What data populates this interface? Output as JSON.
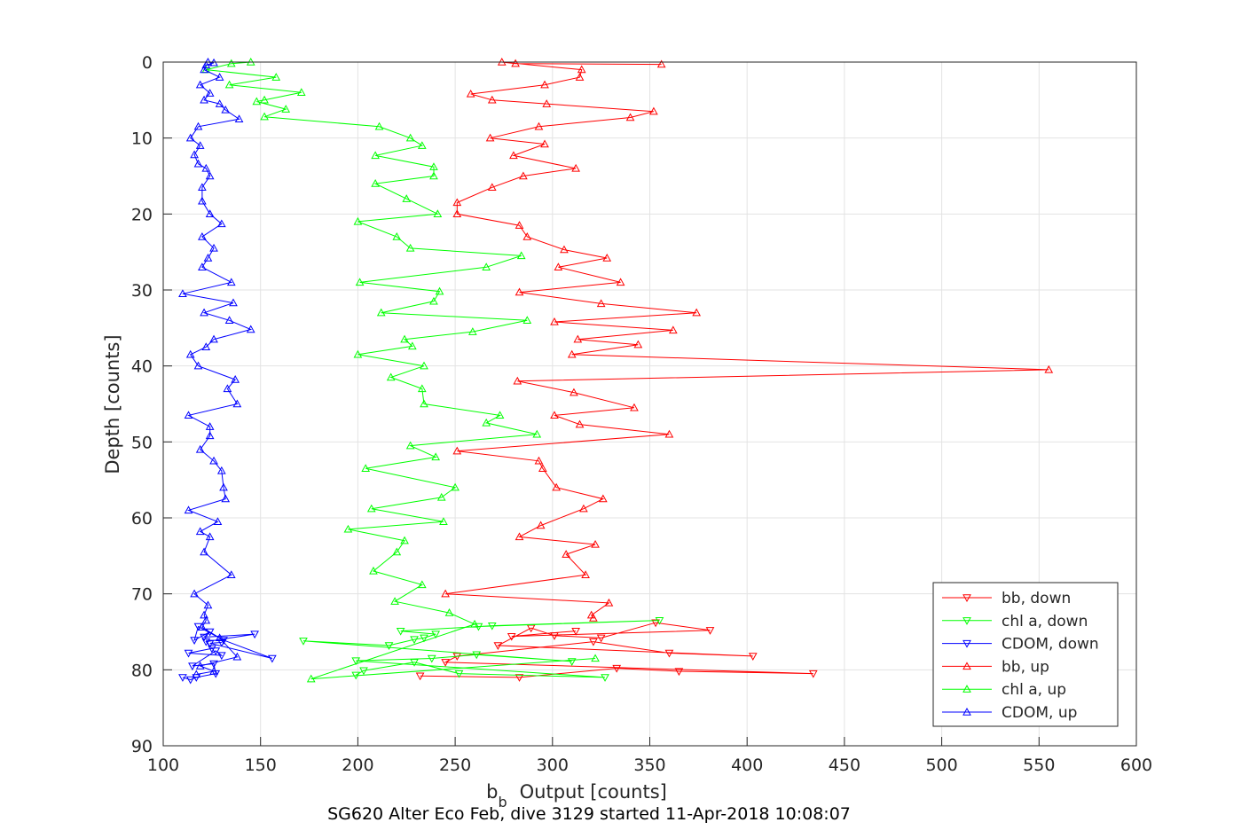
{
  "chart_data": {
    "type": "line",
    "title": "",
    "xlabel_main": "b",
    "xlabel_sub": "b",
    "xlabel_rest": "Output [counts]",
    "ylabel": "Depth [counts]",
    "caption": "SG620 Alter Eco Feb, dive 3129 started 11-Apr-2018 10:08:07",
    "xlim": [
      100,
      600
    ],
    "ylim": [
      0,
      90
    ],
    "y_reversed": true,
    "grid": true,
    "legend_position": "bottom-right",
    "x_ticks": [
      100,
      150,
      200,
      250,
      300,
      350,
      400,
      450,
      500,
      550,
      600
    ],
    "y_ticks": [
      0,
      10,
      20,
      30,
      40,
      50,
      60,
      70,
      80,
      90
    ],
    "series": [
      {
        "name": "bb, down",
        "color": "#ff0000",
        "marker": "triangle-down",
        "x": [
          232,
          283,
          333,
          365,
          434,
          245,
          251,
          321,
          360,
          403,
          272,
          289,
          301,
          325,
          353,
          381,
          279,
          312
        ],
        "y": [
          80.8,
          81,
          79.8,
          80.2,
          80.5,
          79,
          78.2,
          76.3,
          77.8,
          78.2,
          76.8,
          74.5,
          75.5,
          75.8,
          73.8,
          74.8,
          75.6,
          74.9
        ]
      },
      {
        "name": "chl a, down",
        "color": "#00ff00",
        "marker": "triangle-down",
        "x": [
          199,
          203,
          229,
          252,
          327,
          199,
          238,
          261,
          310,
          172,
          216,
          229,
          234,
          240,
          222,
          269,
          355,
          262
        ],
        "y": [
          80.7,
          80.1,
          79,
          80.5,
          81,
          78.8,
          78.5,
          78,
          78.9,
          76.2,
          76.8,
          76,
          75.8,
          75.3,
          74.9,
          74.2,
          73.5,
          74.3
        ]
      },
      {
        "name": "CDOM, down",
        "color": "#0000ff",
        "marker": "triangle-down",
        "x": [
          110,
          114,
          117,
          127,
          126,
          115,
          127,
          130,
          113,
          125,
          122,
          147,
          121,
          124,
          116,
          118,
          131,
          156,
          124,
          130
        ],
        "y": [
          81,
          81.3,
          81,
          80.5,
          79.2,
          79.5,
          77.5,
          78.1,
          77.8,
          77.2,
          76.3,
          75.3,
          75.7,
          75,
          76.1,
          74.3,
          76.1,
          78.5,
          76.5,
          76.4
        ]
      },
      {
        "name": "bb, up",
        "color": "#ff0000",
        "marker": "triangle-up",
        "x": [
          356,
          281,
          274,
          315,
          314,
          296,
          258,
          269,
          297,
          352,
          340,
          293,
          268,
          296,
          280,
          312,
          285,
          269,
          251,
          251,
          283,
          287,
          306,
          328,
          303,
          335,
          283,
          325,
          374,
          301,
          362,
          313,
          344,
          310,
          555,
          282,
          311,
          342,
          301,
          314,
          360,
          251,
          293,
          295,
          302,
          326,
          316,
          294,
          283,
          322,
          307,
          317,
          245,
          329,
          320,
          321
        ],
        "y": [
          0.3,
          0.2,
          0,
          1,
          2,
          3,
          4.2,
          5,
          5.5,
          6.5,
          7.3,
          8.5,
          10,
          10.8,
          12.3,
          14,
          15,
          16.5,
          18.5,
          20,
          21.5,
          23,
          24.7,
          25.8,
          27,
          29,
          30.3,
          31.8,
          33,
          34.2,
          35.3,
          36.5,
          37.2,
          38.5,
          40.5,
          42,
          43.5,
          45.5,
          46.5,
          47.7,
          49,
          51.2,
          52.5,
          53.5,
          56,
          57.5,
          58.8,
          61,
          62.5,
          63.5,
          64.8,
          67.5,
          70,
          71.2,
          72.8,
          73.2
        ]
      },
      {
        "name": "chl a, up",
        "color": "#00ff00",
        "marker": "triangle-up",
        "x": [
          145,
          135,
          122,
          158,
          134,
          171,
          152,
          148,
          163,
          152,
          211,
          227,
          233,
          209,
          239,
          239,
          209,
          225,
          241,
          200,
          220,
          227,
          284,
          266,
          201,
          242,
          239,
          212,
          287,
          259,
          224,
          228,
          200,
          234,
          217,
          233,
          234,
          273,
          266,
          292,
          227,
          240,
          204,
          250,
          243,
          207,
          244,
          195,
          224,
          220,
          208,
          233,
          219,
          247,
          260,
          176,
          322
        ],
        "y": [
          0,
          0.2,
          1,
          2,
          3,
          4,
          5,
          5.2,
          6.2,
          7.2,
          8.5,
          10,
          11,
          12.3,
          13.8,
          15,
          16,
          18,
          20,
          21,
          23,
          24.5,
          25.5,
          27,
          29,
          30.2,
          31.5,
          33,
          34,
          35.5,
          36.5,
          37.4,
          38.5,
          40,
          41.5,
          43,
          45,
          46.5,
          47.5,
          49,
          50.5,
          52,
          53.5,
          56,
          57.3,
          58.8,
          60.5,
          61.5,
          63,
          64.5,
          67,
          68.8,
          71,
          72.5,
          74,
          81.2,
          78.5
        ]
      },
      {
        "name": "CDOM, up",
        "color": "#0000ff",
        "marker": "triangle-up",
        "x": [
          123,
          126,
          122,
          121,
          129,
          119,
          124,
          121,
          129,
          132,
          139,
          118,
          114,
          119,
          116,
          118,
          122,
          124,
          120,
          120,
          124,
          130,
          120,
          126,
          123,
          120,
          135,
          110,
          136,
          121,
          134,
          145,
          126,
          122,
          114,
          118,
          137,
          133,
          138,
          113,
          124,
          124,
          119,
          126,
          130,
          131,
          132,
          113,
          128,
          119,
          124,
          121,
          135,
          116,
          123,
          121,
          122,
          120,
          129,
          138,
          119,
          126,
          117
        ],
        "y": [
          0,
          0.1,
          0.4,
          1,
          2,
          3,
          4.1,
          5,
          5.5,
          6.3,
          7.5,
          8.5,
          10,
          11,
          12.2,
          13.4,
          14,
          15,
          16.5,
          18.3,
          20,
          21.3,
          23,
          24.5,
          25.8,
          27,
          29,
          30.5,
          31.7,
          33,
          34,
          35.2,
          36.5,
          37.5,
          38.5,
          40,
          41.8,
          43,
          45,
          46.5,
          48,
          49.2,
          51,
          52.5,
          53.8,
          56,
          57.5,
          59,
          60.5,
          61.8,
          62.5,
          64.5,
          67.5,
          70,
          71.5,
          72.8,
          73.5,
          74.4,
          75.8,
          78.3,
          79.5,
          80.2,
          80.6
        ]
      }
    ]
  }
}
